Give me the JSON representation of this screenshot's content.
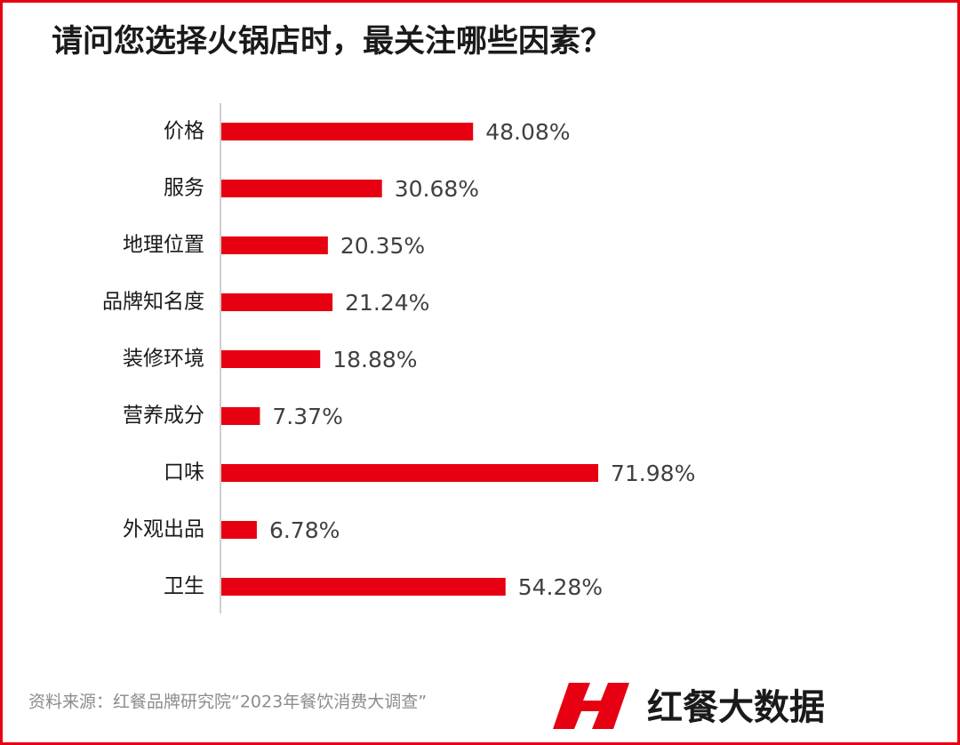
{
  "chart_data": {
    "type": "bar",
    "orientation": "horizontal",
    "title": "请问您选择火锅店时，最关注哪些因素？",
    "categories": [
      "价格",
      "服务",
      "地理位置",
      "品牌知名度",
      "装修环境",
      "营养成分",
      "口味",
      "外观出品",
      "卫生"
    ],
    "values": [
      48.08,
      30.68,
      20.35,
      21.24,
      18.88,
      7.37,
      71.98,
      6.78,
      54.28
    ],
    "value_labels": [
      "48.08%",
      "30.68%",
      "20.35%",
      "21.24%",
      "18.88%",
      "7.37%",
      "71.98%",
      "6.78%",
      "54.28%"
    ],
    "color": "#e60012",
    "source": "资料来源：红餐品牌研究院“2023年餐饮消费大调查”",
    "brand": "红餐大数据"
  }
}
